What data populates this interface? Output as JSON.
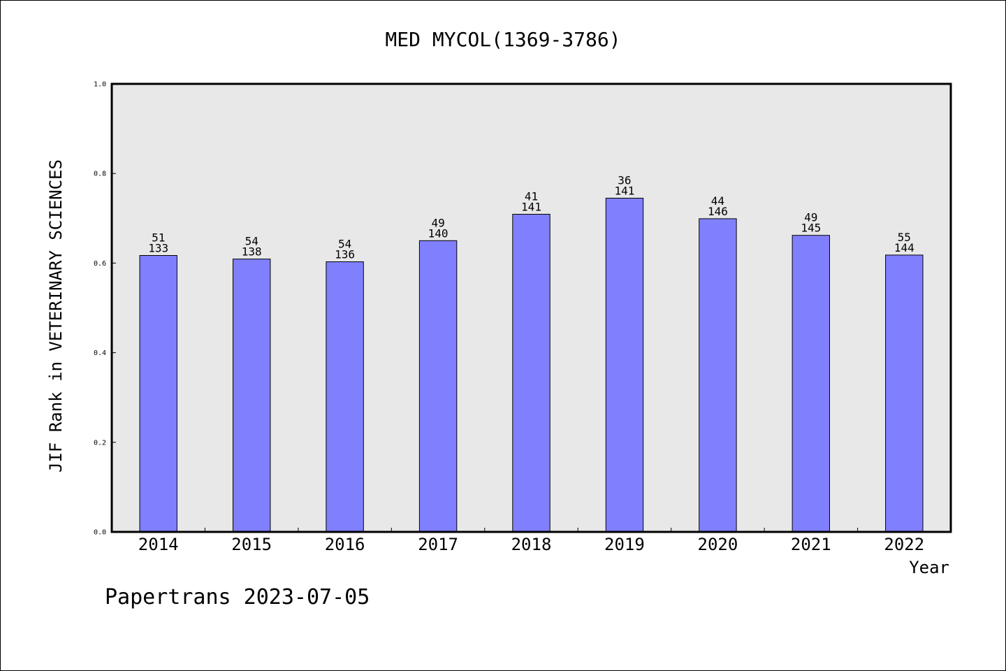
{
  "chart_data": {
    "type": "bar",
    "title": "MED MYCOL(1369-3786)",
    "xlabel": "Year",
    "ylabel": "JIF Rank in VETERINARY SCIENCES",
    "ylim": [
      0,
      1.0
    ],
    "yticks": [
      "0.0",
      "0.2",
      "0.4",
      "0.6",
      "0.8",
      "1.0"
    ],
    "ytick_values": [
      0.0,
      0.2,
      0.4,
      0.6,
      0.8,
      1.0
    ],
    "categories": [
      "2014",
      "2015",
      "2016",
      "2017",
      "2018",
      "2019",
      "2020",
      "2021",
      "2022"
    ],
    "values": [
      0.617,
      0.609,
      0.603,
      0.65,
      0.709,
      0.745,
      0.699,
      0.662,
      0.618
    ],
    "rank": [
      "51",
      "54",
      "54",
      "49",
      "41",
      "36",
      "44",
      "49",
      "55"
    ],
    "total": [
      "133",
      "138",
      "136",
      "140",
      "141",
      "141",
      "146",
      "145",
      "144"
    ],
    "bar_color": "#8080ff",
    "plot_bg": "#e8e8e8",
    "grid": false
  },
  "footer": {
    "text": "Papertrans 2023-07-05"
  }
}
